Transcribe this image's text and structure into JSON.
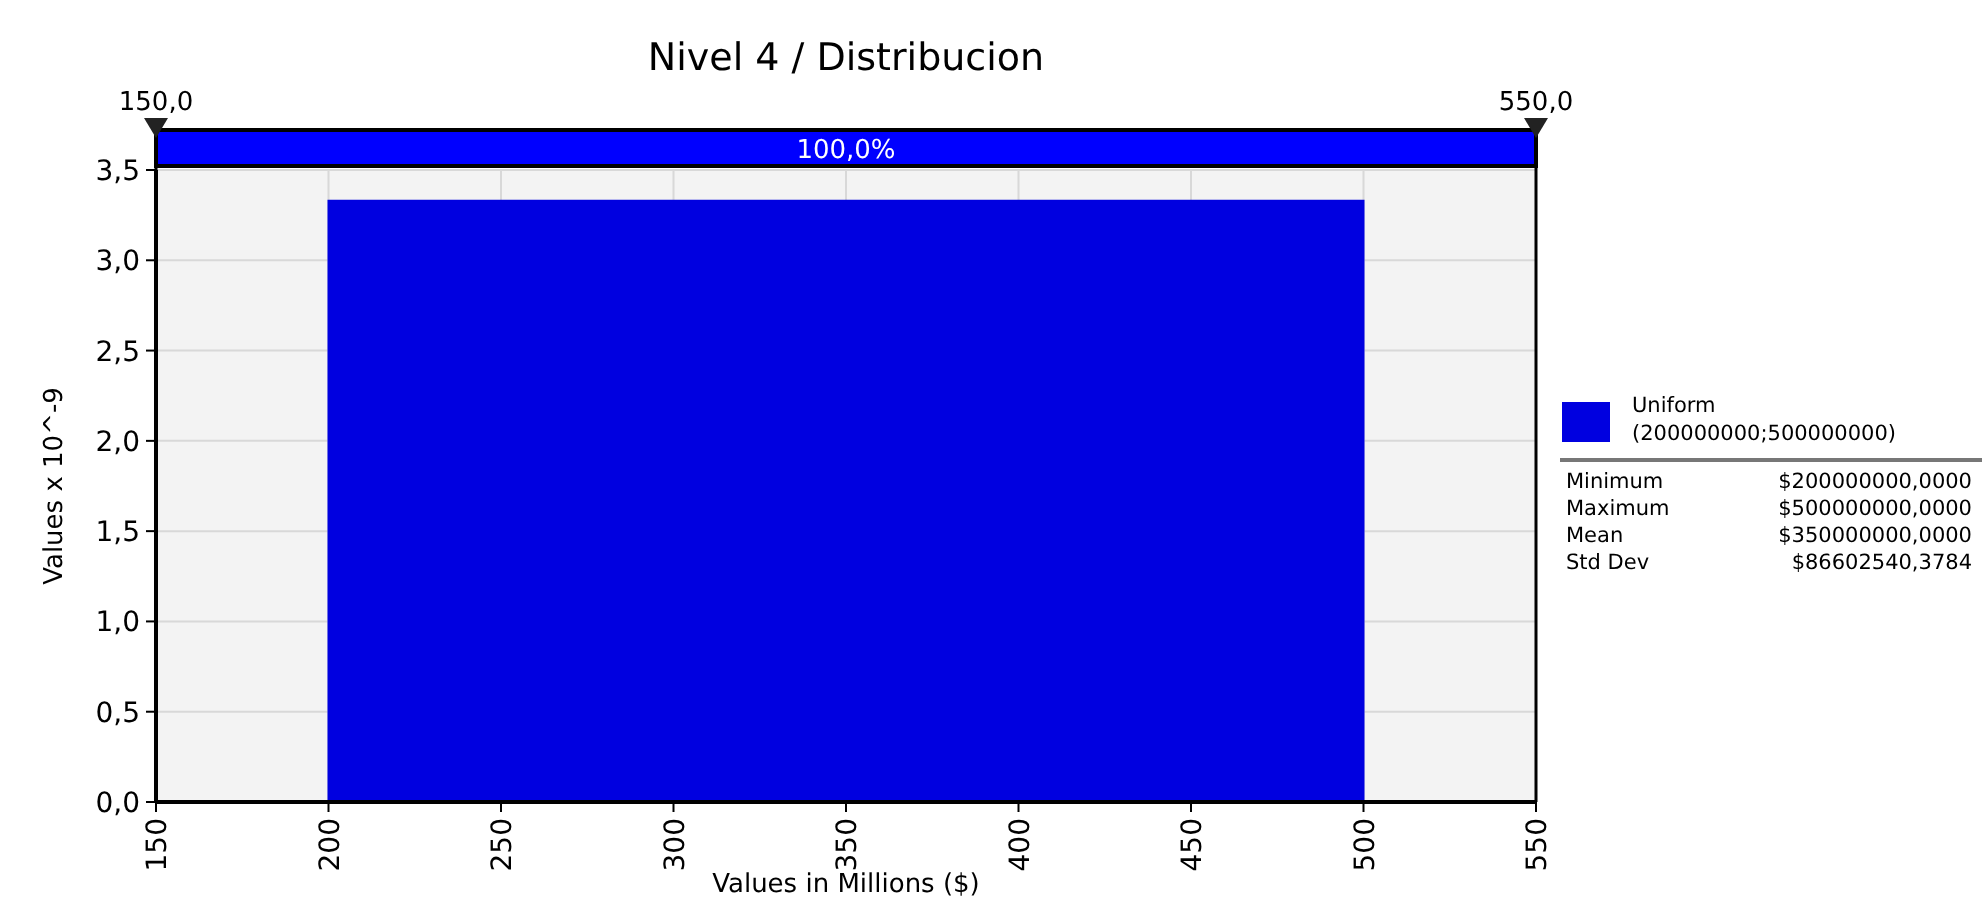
{
  "chart_data": {
    "type": "area",
    "title": "Nivel 4 / Distribucion",
    "xlabel": "Values in Millions ($)",
    "ylabel": "Values x 10^-9",
    "xlim": [
      150,
      550
    ],
    "xticks": [
      150,
      200,
      250,
      300,
      350,
      400,
      450,
      500,
      550
    ],
    "ylim": [
      0,
      3.5
    ],
    "yticks": [
      {
        "value": 0,
        "label": "0,0"
      },
      {
        "value": 0.5,
        "label": "0,5"
      },
      {
        "value": 1,
        "label": "1,0"
      },
      {
        "value": 1.5,
        "label": "1,5"
      },
      {
        "value": 2,
        "label": "2,0"
      },
      {
        "value": 2.5,
        "label": "2,5"
      },
      {
        "value": 3,
        "label": "3,0"
      },
      {
        "value": 3.5,
        "label": "3,5"
      }
    ],
    "series": [
      {
        "name": "Uniform (200000000;500000000)",
        "color": "#0000e0",
        "x": [
          150,
          200,
          200,
          500,
          500,
          550
        ],
        "values": [
          0,
          0,
          3.33,
          3.33,
          0,
          0
        ]
      }
    ],
    "ref_lines": [
      {
        "axis": "x",
        "value": 150,
        "label": "150,0"
      },
      {
        "axis": "x",
        "value": 550,
        "label": "550,0"
      }
    ],
    "annotations": [
      "100,0%",
      "Minimum",
      "$200000000,0000",
      "Maximum",
      "$500000000,0000",
      "Mean",
      "$350000000,0000",
      "Std Dev",
      "$86602540,3784"
    ],
    "grid": true,
    "legend": "right"
  }
}
